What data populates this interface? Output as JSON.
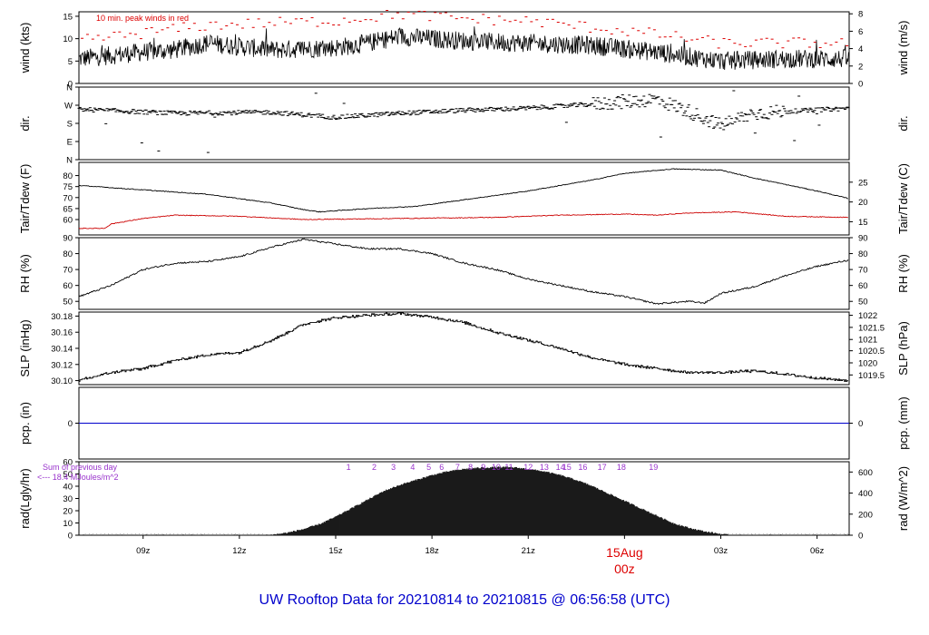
{
  "title": "UW Rooftop Data for 20210814  to  20210815 @ 06:56:58  (UTC)",
  "colors": {
    "text": "#000000",
    "peak": "#dd0000",
    "dew": "#cc0000",
    "pcp": "#0000cc",
    "title": "#0000cc",
    "rad_note": "#9933cc",
    "date": "#dd0000"
  },
  "time_axis": {
    "ticks": [
      {
        "t": 9,
        "label": "09z"
      },
      {
        "t": 12,
        "label": "12z"
      },
      {
        "t": 15,
        "label": "15z"
      },
      {
        "t": 18,
        "label": "18z"
      },
      {
        "t": 21,
        "label": "21z"
      },
      {
        "t": 24,
        "label": "00z"
      },
      {
        "t": 27,
        "label": "03z"
      },
      {
        "t": 30,
        "label": "06z"
      }
    ],
    "date_label": "15Aug",
    "date_sub": "00z",
    "range_hours": [
      7.0,
      31.0
    ]
  },
  "chart_data": [
    {
      "type": "line",
      "id": "wind",
      "ylabel": "wind (kts)",
      "ylabel_right": "wind (m/s)",
      "ylim": [
        0,
        16
      ],
      "yticks": [
        0,
        5,
        10,
        15
      ],
      "right_ticks": [
        {
          "v": 0,
          "label": "0"
        },
        {
          "v": 3.89,
          "label": "2"
        },
        {
          "v": 7.78,
          "label": "4"
        },
        {
          "v": 11.66,
          "label": "6"
        },
        {
          "v": 15.55,
          "label": "8"
        }
      ],
      "annotation": "10 min. peak winds in red",
      "series": [
        {
          "values_model": [
            [
              7,
              5.5
            ],
            [
              9,
              7
            ],
            [
              10,
              7.5
            ],
            [
              11,
              9
            ],
            [
              13,
              7.5
            ],
            [
              15,
              8
            ],
            [
              16,
              9
            ],
            [
              17,
              10.5
            ],
            [
              19,
              9.5
            ],
            [
              21,
              9
            ],
            [
              23,
              8.5
            ],
            [
              25,
              7
            ],
            [
              27,
              5
            ],
            [
              29,
              5.5
            ],
            [
              31,
              5.5
            ]
          ]
        }
      ],
      "peak_model": [
        [
          7,
          9.5
        ],
        [
          11,
          13
        ],
        [
          15,
          14
        ],
        [
          17,
          15.5
        ],
        [
          19,
          14.5
        ],
        [
          21,
          14
        ],
        [
          23,
          12.5
        ],
        [
          25,
          11
        ],
        [
          27,
          9
        ],
        [
          29,
          9
        ],
        [
          31,
          9
        ]
      ]
    },
    {
      "type": "scatter",
      "id": "dir",
      "ylabel": "dir.",
      "ylabel_right": "dir.",
      "ylim": [
        0,
        360
      ],
      "yticks": [
        {
          "v": 0,
          "label": "N"
        },
        {
          "v": 90,
          "label": "E"
        },
        {
          "v": 180,
          "label": "S"
        },
        {
          "v": 270,
          "label": "W"
        },
        {
          "v": 360,
          "label": "N"
        }
      ],
      "values_model": [
        [
          7,
          250
        ],
        [
          10,
          230
        ],
        [
          13,
          235
        ],
        [
          15,
          210
        ],
        [
          17,
          230
        ],
        [
          19,
          245
        ],
        [
          21,
          255
        ],
        [
          23,
          275
        ],
        [
          25,
          300
        ],
        [
          26,
          240
        ],
        [
          27,
          170
        ],
        [
          28,
          230
        ],
        [
          31,
          255
        ]
      ]
    },
    {
      "type": "line",
      "id": "temp",
      "ylabel": "Tair/Tdew (F)",
      "ylabel_right": "Tair/Tdew (C)",
      "ylim": [
        53,
        86
      ],
      "yticks": [
        60,
        65,
        70,
        75,
        80
      ],
      "right_ticks": [
        {
          "v": 59,
          "label": "15"
        },
        {
          "v": 68,
          "label": "20"
        },
        {
          "v": 77,
          "label": "25"
        }
      ],
      "series": [
        {
          "values_model": [
            [
              7,
              75.5
            ],
            [
              9,
              73.5
            ],
            [
              11,
              71.5
            ],
            [
              13,
              67.5
            ],
            [
              14,
              64.5
            ],
            [
              14.5,
              63.5
            ],
            [
              16,
              65
            ],
            [
              17.5,
              66
            ],
            [
              19,
              69
            ],
            [
              21,
              73
            ],
            [
              23,
              78
            ],
            [
              24,
              81
            ],
            [
              25.5,
              83
            ],
            [
              27,
              82.5
            ],
            [
              28,
              79
            ],
            [
              30,
              73
            ],
            [
              31,
              69.5
            ]
          ]
        },
        {
          "values_model": [
            [
              7,
              56
            ],
            [
              7.8,
              56
            ],
            [
              8,
              58
            ],
            [
              9,
              60.5
            ],
            [
              10,
              62
            ],
            [
              12,
              61.5
            ],
            [
              14,
              60
            ],
            [
              17,
              60.5
            ],
            [
              20,
              61
            ],
            [
              22,
              62
            ],
            [
              24,
              62.5
            ],
            [
              25,
              62
            ],
            [
              26,
              63
            ],
            [
              27.5,
              63.5
            ],
            [
              29,
              61.5
            ],
            [
              31,
              61
            ]
          ]
        }
      ]
    },
    {
      "type": "line",
      "id": "rh",
      "ylabel": "RH (%)",
      "ylabel_right": "RH (%)",
      "ylim": [
        45,
        90
      ],
      "yticks": [
        50,
        60,
        70,
        80,
        90
      ],
      "right_ticks": [
        {
          "v": 50,
          "label": "50"
        },
        {
          "v": 60,
          "label": "60"
        },
        {
          "v": 70,
          "label": "70"
        },
        {
          "v": 80,
          "label": "80"
        },
        {
          "v": 90,
          "label": "90"
        }
      ],
      "series": [
        {
          "values_model": [
            [
              7,
              53
            ],
            [
              8,
              60
            ],
            [
              9,
              70
            ],
            [
              10,
              74
            ],
            [
              11,
              75
            ],
            [
              12,
              78
            ],
            [
              13,
              84
            ],
            [
              14,
              89
            ],
            [
              15,
              86
            ],
            [
              16,
              83
            ],
            [
              17,
              83
            ],
            [
              18,
              80
            ],
            [
              19,
              74
            ],
            [
              20,
              70
            ],
            [
              21,
              64
            ],
            [
              22,
              60
            ],
            [
              23,
              56
            ],
            [
              24,
              53
            ],
            [
              25,
              48.5
            ],
            [
              26,
              50
            ],
            [
              26.5,
              49
            ],
            [
              27,
              55
            ],
            [
              28,
              59
            ],
            [
              29,
              66
            ],
            [
              30,
              72
            ],
            [
              31,
              76
            ]
          ]
        }
      ]
    },
    {
      "type": "line",
      "id": "slp",
      "ylabel": "SLP (inHg)",
      "ylabel_right": "SLP (hPa)",
      "ylim": [
        30.095,
        30.185
      ],
      "yticks": [
        30.1,
        30.12,
        30.14,
        30.16,
        30.18
      ],
      "right_ticks": [
        {
          "v": 30.107,
          "label": "1019.5"
        },
        {
          "v": 30.122,
          "label": "1020"
        },
        {
          "v": 30.137,
          "label": "1020.5"
        },
        {
          "v": 30.151,
          "label": "1021"
        },
        {
          "v": 30.166,
          "label": "1021.5"
        },
        {
          "v": 30.181,
          "label": "1022"
        }
      ],
      "series": [
        {
          "values_model": [
            [
              7,
              30.1
            ],
            [
              8,
              30.11
            ],
            [
              9,
              30.115
            ],
            [
              10,
              30.125
            ],
            [
              11,
              30.132
            ],
            [
              12,
              30.135
            ],
            [
              13,
              30.15
            ],
            [
              14,
              30.17
            ],
            [
              15,
              30.178
            ],
            [
              16,
              30.181
            ],
            [
              17,
              30.183
            ],
            [
              18,
              30.179
            ],
            [
              19,
              30.172
            ],
            [
              20,
              30.16
            ],
            [
              21,
              30.15
            ],
            [
              22,
              30.14
            ],
            [
              23,
              30.128
            ],
            [
              24,
              30.12
            ],
            [
              25,
              30.115
            ],
            [
              26,
              30.11
            ],
            [
              27,
              30.11
            ],
            [
              28,
              30.112
            ],
            [
              29,
              30.108
            ],
            [
              30,
              30.103
            ],
            [
              31,
              30.1
            ]
          ]
        }
      ]
    },
    {
      "type": "line",
      "id": "pcp",
      "ylabel": "pcp. (in)",
      "ylabel_right": "pcp. (mm)",
      "ylim": [
        -1,
        1
      ],
      "yticks": [
        0
      ],
      "right_ticks": [
        {
          "v": 0,
          "label": "0"
        }
      ],
      "series": [
        {
          "values": [
            [
              7,
              0
            ],
            [
              31,
              0
            ]
          ]
        }
      ]
    },
    {
      "type": "area",
      "id": "rad",
      "ylabel": "rad(Lgly/hr)",
      "ylabel_right": "rad (W/m^2)",
      "ylim": [
        0,
        60
      ],
      "yticks": [
        0,
        10,
        20,
        30,
        40,
        50,
        60
      ],
      "right_ticks": [
        {
          "v": 0,
          "label": "0"
        },
        {
          "v": 17.2,
          "label": "200"
        },
        {
          "v": 34.4,
          "label": "400"
        },
        {
          "v": 51.6,
          "label": "600"
        }
      ],
      "note_line1": "Sum of previous day",
      "note_line2": "<--- 18.4 MJoules/m^2",
      "hour_labels": [
        {
          "t": 15.4,
          "label": "1"
        },
        {
          "t": 16.2,
          "label": "2"
        },
        {
          "t": 16.8,
          "label": "3"
        },
        {
          "t": 17.4,
          "label": "4"
        },
        {
          "t": 17.9,
          "label": "5"
        },
        {
          "t": 18.3,
          "label": "6"
        },
        {
          "t": 18.8,
          "label": "7"
        },
        {
          "t": 19.2,
          "label": "8"
        },
        {
          "t": 19.6,
          "label": "9"
        },
        {
          "t": 20.0,
          "label": "10"
        },
        {
          "t": 20.4,
          "label": "11"
        },
        {
          "t": 21.0,
          "label": "12"
        },
        {
          "t": 21.5,
          "label": "13"
        },
        {
          "t": 22.0,
          "label": "14"
        },
        {
          "t": 22.2,
          "label": "15"
        },
        {
          "t": 22.7,
          "label": "16"
        },
        {
          "t": 23.3,
          "label": "17"
        },
        {
          "t": 23.9,
          "label": "18"
        },
        {
          "t": 24.9,
          "label": "19"
        }
      ],
      "values_model": [
        [
          7,
          0
        ],
        [
          12.5,
          0
        ],
        [
          13,
          0.3
        ],
        [
          13.5,
          2
        ],
        [
          14,
          5
        ],
        [
          14.5,
          9
        ],
        [
          15,
          15
        ],
        [
          15.5,
          22
        ],
        [
          16,
          29
        ],
        [
          16.5,
          36
        ],
        [
          17,
          41
        ],
        [
          17.5,
          45
        ],
        [
          18,
          49
        ],
        [
          18.5,
          52
        ],
        [
          19,
          54
        ],
        [
          19.5,
          55
        ],
        [
          20,
          55.5
        ],
        [
          20.5,
          55.5
        ],
        [
          21,
          54
        ],
        [
          21.5,
          52
        ],
        [
          22,
          49
        ],
        [
          22.5,
          45
        ],
        [
          23,
          40
        ],
        [
          23.5,
          34
        ],
        [
          24,
          28
        ],
        [
          24.5,
          22
        ],
        [
          25,
          16
        ],
        [
          25.5,
          10
        ],
        [
          26,
          6
        ],
        [
          26.5,
          3
        ],
        [
          27,
          1
        ],
        [
          27.3,
          0
        ],
        [
          31,
          0
        ]
      ]
    }
  ]
}
